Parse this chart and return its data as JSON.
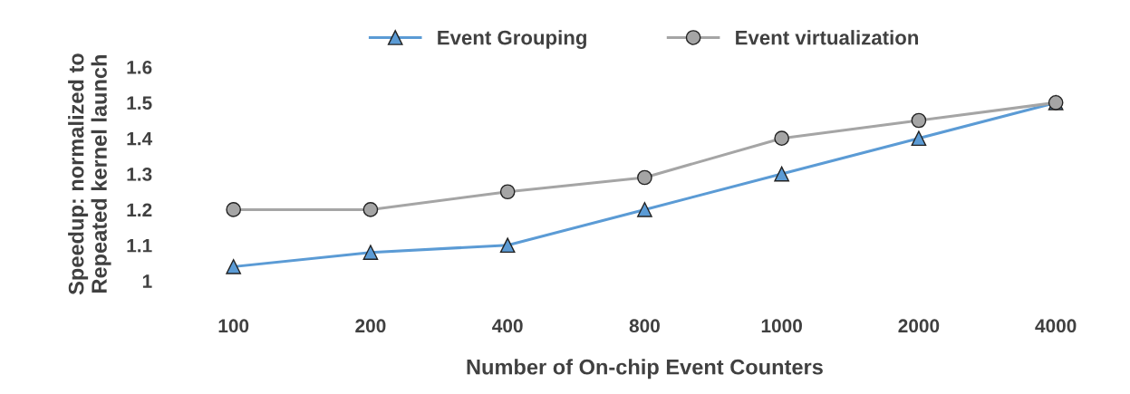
{
  "chart_data": {
    "type": "line",
    "xlabel": "Number of On-chip Event Counters",
    "ylabel": "Speedup: normalized to\nRepeated kernel launch",
    "categories": [
      "100",
      "200",
      "400",
      "800",
      "1000",
      "2000",
      "4000"
    ],
    "series": [
      {
        "name": "Event Grouping",
        "color": "#5b9bd5",
        "marker": "triangle",
        "values": [
          1.04,
          1.08,
          1.1,
          1.2,
          1.3,
          1.4,
          1.5
        ]
      },
      {
        "name": "Event virtualization",
        "color": "#a5a5a5",
        "marker": "circle",
        "values": [
          1.2,
          1.2,
          1.25,
          1.29,
          1.4,
          1.45,
          1.5
        ]
      }
    ],
    "ylim": [
      1,
      1.6
    ],
    "yticks": [
      {
        "value": 1,
        "label": "1"
      },
      1.1,
      1.2,
      1.3,
      1.4,
      1.5,
      1.6
    ],
    "grid": false,
    "legend": "top",
    "line_style": "solid"
  }
}
